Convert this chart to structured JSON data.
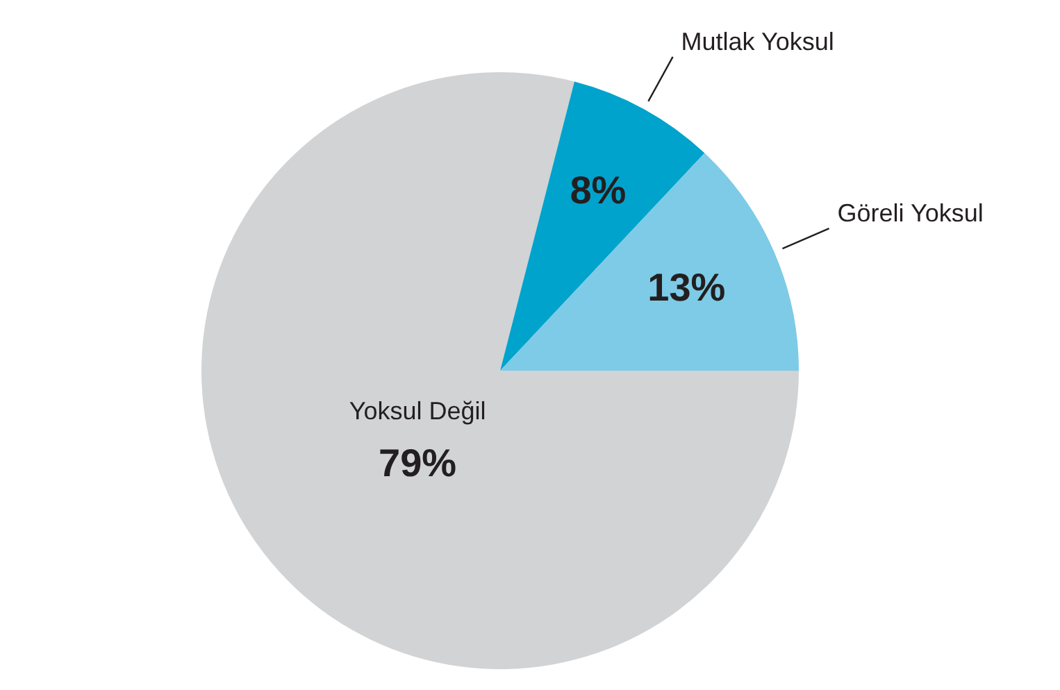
{
  "chart_data": {
    "type": "pie",
    "categories": [
      "Yoksul Değil",
      "Mutlak Yoksul",
      "Göreli Yoksul"
    ],
    "values": [
      79,
      8,
      13
    ],
    "colors": [
      "#d1d3d4",
      "#00a3cc",
      "#7dcbe6"
    ],
    "value_labels": [
      "79%",
      "8%",
      "13%"
    ],
    "legend": false
  }
}
